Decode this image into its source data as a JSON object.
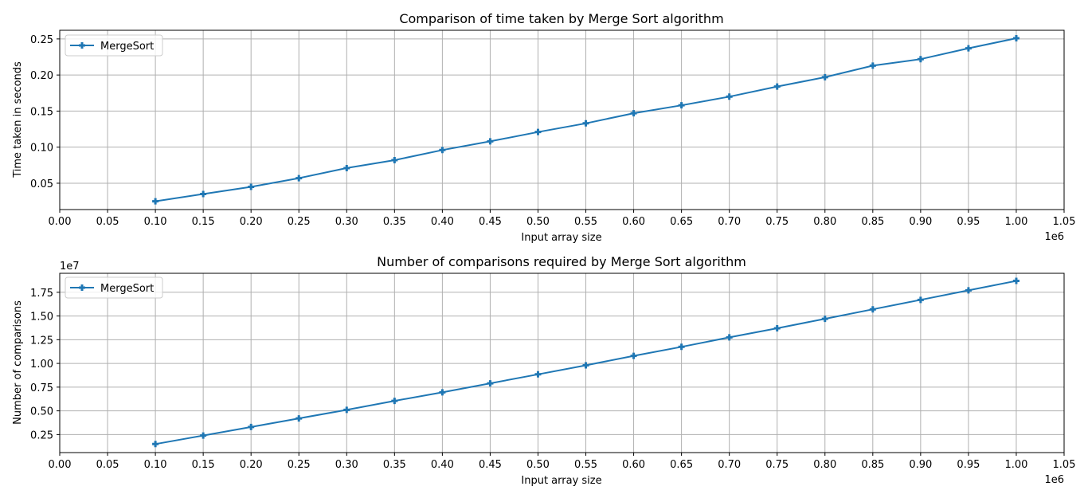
{
  "chart_data": [
    {
      "type": "line",
      "title": "Comparison of time taken by Merge Sort algorithm",
      "xlabel": "Input array size",
      "ylabel": "Time taken in seconds",
      "x_offset_label": "1e6",
      "y_offset_label": "",
      "grid": true,
      "legend_position": "top-left",
      "color": "#1f77b4",
      "marker": "plus",
      "xlim": [
        0,
        1.05
      ],
      "ylim": [
        0.0135,
        0.262
      ],
      "x_ticks": [
        "0.00",
        "0.05",
        "0.10",
        "0.15",
        "0.20",
        "0.25",
        "0.30",
        "0.35",
        "0.40",
        "0.45",
        "0.50",
        "0.55",
        "0.60",
        "0.65",
        "0.70",
        "0.75",
        "0.80",
        "0.85",
        "0.90",
        "0.95",
        "1.00",
        "1.05"
      ],
      "y_ticks": [
        "0.05",
        "0.10",
        "0.15",
        "0.20",
        "0.25"
      ],
      "x": [
        0.1,
        0.15,
        0.2,
        0.25,
        0.3,
        0.35,
        0.4,
        0.45,
        0.5,
        0.55,
        0.6,
        0.65,
        0.7,
        0.75,
        0.8,
        0.85,
        0.9,
        0.95,
        1.0
      ],
      "series": [
        {
          "name": "MergeSort",
          "values": [
            0.025,
            0.035,
            0.045,
            0.057,
            0.071,
            0.082,
            0.096,
            0.108,
            0.121,
            0.133,
            0.147,
            0.158,
            0.17,
            0.184,
            0.197,
            0.213,
            0.222,
            0.237,
            0.251
          ]
        }
      ]
    },
    {
      "type": "line",
      "title": "Number of comparisons required by Merge Sort algorithm",
      "xlabel": "Input array size",
      "ylabel": "Number of comparisons",
      "x_offset_label": "1e6",
      "y_offset_label": "1e7",
      "grid": true,
      "legend_position": "top-left",
      "color": "#1f77b4",
      "marker": "plus",
      "xlim": [
        0,
        1.05
      ],
      "ylim": [
        0.06,
        1.95
      ],
      "x_ticks": [
        "0.00",
        "0.05",
        "0.10",
        "0.15",
        "0.20",
        "0.25",
        "0.30",
        "0.35",
        "0.40",
        "0.45",
        "0.50",
        "0.55",
        "0.60",
        "0.65",
        "0.70",
        "0.75",
        "0.80",
        "0.85",
        "0.90",
        "0.95",
        "1.00",
        "1.05"
      ],
      "y_ticks": [
        "0.25",
        "0.50",
        "0.75",
        "1.00",
        "1.25",
        "1.50",
        "1.75"
      ],
      "x": [
        0.1,
        0.15,
        0.2,
        0.25,
        0.3,
        0.35,
        0.4,
        0.45,
        0.5,
        0.55,
        0.6,
        0.65,
        0.7,
        0.75,
        0.8,
        0.85,
        0.9,
        0.95,
        1.0
      ],
      "series": [
        {
          "name": "MergeSort",
          "values": [
            0.15,
            0.24,
            0.33,
            0.42,
            0.51,
            0.605,
            0.695,
            0.79,
            0.885,
            0.98,
            1.08,
            1.175,
            1.275,
            1.37,
            1.47,
            1.57,
            1.67,
            1.77,
            1.87
          ]
        }
      ]
    }
  ]
}
